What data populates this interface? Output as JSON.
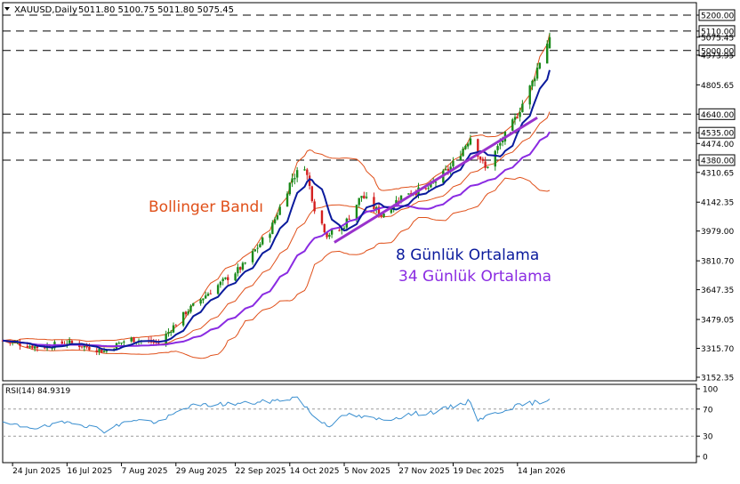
{
  "header": {
    "symbol": "XAUUSD,Daily",
    "ohlc": "5011.80 5100.75 5011.80 5075.45"
  },
  "annotations": {
    "bollinger": "Bollinger Bandı",
    "ma8": "8 Günlük Ortalama",
    "ma34": "34 Günlük Ortalama"
  },
  "rsi_header": "RSI(14) 84.9319",
  "colors": {
    "bull": "#1a8a1a",
    "bear": "#d42020",
    "ma8": "#0a1a9c",
    "ma34": "#8a2be2",
    "bands": "#e0501a",
    "trend": "#9932cc",
    "rsi": "#3a8fd0",
    "grid": "#000000"
  },
  "chart_data": [
    {
      "type": "candlestick",
      "title": "XAUUSD,Daily",
      "y_ticks": [
        "5200.00",
        "5110.00",
        "5075.45",
        "5000.00",
        "4973.95",
        "4805.65",
        "4640.00",
        "4535.00",
        "4474.00",
        "4380.00",
        "4310.65",
        "4142.35",
        "3979.00",
        "3810.70",
        "3647.35",
        "3479.05",
        "3315.70",
        "3152.35"
      ],
      "x_ticks": [
        "24 Jun 2025",
        "16 Jul 2025",
        "7 Aug 2025",
        "29 Aug 2025",
        "22 Sep 2025",
        "14 Oct 2025",
        "5 Nov 2025",
        "27 Nov 2025",
        "19 Dec 2025",
        "14 Jan 2026"
      ],
      "ylim": [
        3110,
        5240
      ],
      "horizontal_levels": [
        5200,
        5110,
        5000,
        4640,
        4535,
        4380
      ],
      "last_price": 5075.45,
      "series": [
        {
          "name": "8 Günlük Ortalama"
        },
        {
          "name": "34 Günlük Ortalama"
        },
        {
          "name": "Bollinger Bandı"
        }
      ],
      "trendline": {
        "from": [
          "1 Nov 2025",
          3915
        ],
        "to": [
          "22 Jan 2026",
          4620
        ]
      },
      "control_points": [
        {
          "date": "20 Jun 2025",
          "price": 3360
        },
        {
          "date": "5 Jul 2025",
          "price": 3320
        },
        {
          "date": "16 Jul 2025",
          "price": 3350
        },
        {
          "date": "31 Jul 2025",
          "price": 3300
        },
        {
          "date": "10 Aug 2025",
          "price": 3370
        },
        {
          "date": "22 Aug 2025",
          "price": 3345
        },
        {
          "date": "2 Sep 2025",
          "price": 3520
        },
        {
          "date": "12 Sep 2025",
          "price": 3640
        },
        {
          "date": "25 Sep 2025",
          "price": 3780
        },
        {
          "date": "6 Oct 2025",
          "price": 3980
        },
        {
          "date": "15 Oct 2025",
          "price": 4280
        },
        {
          "date": "20 Oct 2025",
          "price": 4350
        },
        {
          "date": "24 Oct 2025",
          "price": 4110
        },
        {
          "date": "29 Oct 2025",
          "price": 3960
        },
        {
          "date": "4 Nov 2025",
          "price": 3990
        },
        {
          "date": "12 Nov 2025",
          "price": 4180
        },
        {
          "date": "20 Nov 2025",
          "price": 4070
        },
        {
          "date": "30 Nov 2025",
          "price": 4200
        },
        {
          "date": "8 Dec 2025",
          "price": 4210
        },
        {
          "date": "18 Dec 2025",
          "price": 4340
        },
        {
          "date": "26 Dec 2025",
          "price": 4510
        },
        {
          "date": "1 Jan 2026",
          "price": 4330
        },
        {
          "date": "6 Jan 2026",
          "price": 4450
        },
        {
          "date": "13 Jan 2026",
          "price": 4610
        },
        {
          "date": "20 Jan 2026",
          "price": 4820
        },
        {
          "date": "24 Jan 2026",
          "price": 4980
        },
        {
          "date": "27 Jan 2026",
          "price": 5075.45
        }
      ]
    },
    {
      "type": "line",
      "title": "RSI(14) 84.9319",
      "y_ticks": [
        "100",
        "70",
        "30",
        "0"
      ],
      "ylim": [
        0,
        100
      ],
      "reference_levels": [
        70,
        30
      ],
      "last_value": 84.9319,
      "control_points": [
        {
          "date": "20 Jun 2025",
          "value": 48
        },
        {
          "date": "5 Jul 2025",
          "value": 42
        },
        {
          "date": "18 Jul 2025",
          "value": 52
        },
        {
          "date": "31 Jul 2025",
          "value": 38
        },
        {
          "date": "12 Aug 2025",
          "value": 55
        },
        {
          "date": "22 Aug 2025",
          "value": 50
        },
        {
          "date": "3 Sep 2025",
          "value": 74
        },
        {
          "date": "15 Sep 2025",
          "value": 77
        },
        {
          "date": "29 Sep 2025",
          "value": 79
        },
        {
          "date": "10 Oct 2025",
          "value": 83
        },
        {
          "date": "17 Oct 2025",
          "value": 88
        },
        {
          "date": "24 Oct 2025",
          "value": 58
        },
        {
          "date": "30 Oct 2025",
          "value": 46
        },
        {
          "date": "6 Nov 2025",
          "value": 62
        },
        {
          "date": "14 Nov 2025",
          "value": 57
        },
        {
          "date": "21 Nov 2025",
          "value": 54
        },
        {
          "date": "3 Dec 2025",
          "value": 63
        },
        {
          "date": "12 Dec 2025",
          "value": 66
        },
        {
          "date": "19 Dec 2025",
          "value": 74
        },
        {
          "date": "26 Dec 2025",
          "value": 82
        },
        {
          "date": "29 Dec 2025",
          "value": 55
        },
        {
          "date": "3 Jan 2026",
          "value": 61
        },
        {
          "date": "10 Jan 2026",
          "value": 71
        },
        {
          "date": "17 Jan 2026",
          "value": 77
        },
        {
          "date": "23 Jan 2026",
          "value": 81
        },
        {
          "date": "27 Jan 2026",
          "value": 84.9319
        }
      ]
    }
  ]
}
